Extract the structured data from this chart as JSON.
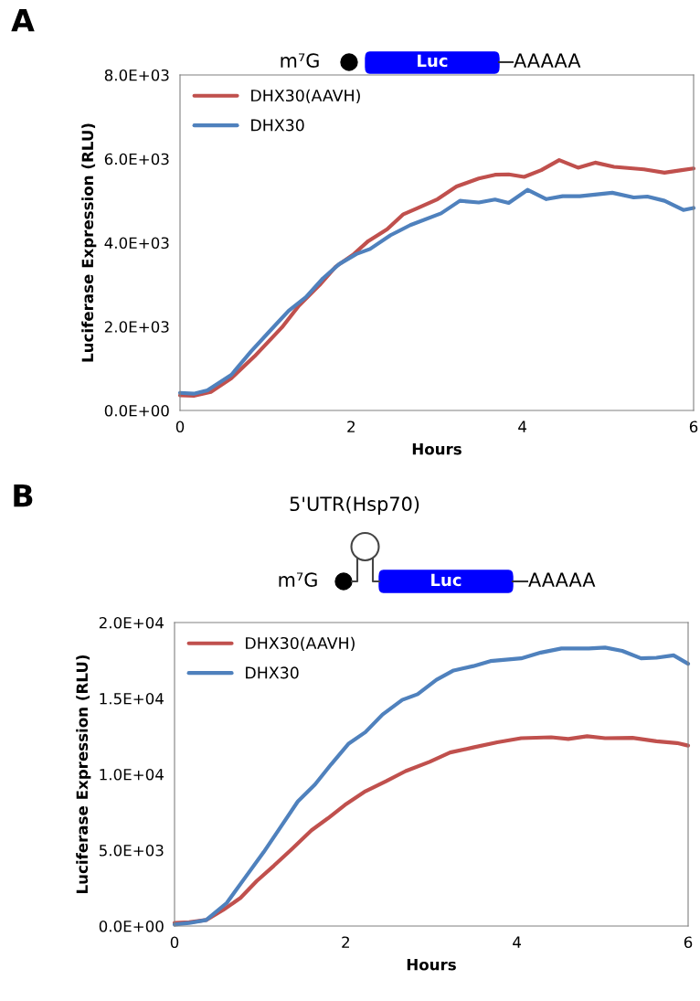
{
  "chart_data": [
    {
      "type": "line",
      "xlabel": "Hours",
      "ylabel": "Luciferase Expression (RLU)",
      "annotations": [
        "A",
        "m⁷G",
        "Luc",
        "AAAAA"
      ],
      "xlim": [
        0,
        6
      ],
      "xticks": [
        0,
        2,
        4,
        6
      ],
      "ylim": [
        0,
        8000
      ],
      "yticks": [
        {
          "value": 0,
          "label": "0.0E+00"
        },
        {
          "value": 2000,
          "label": "2.0E+03"
        },
        {
          "value": 4000,
          "label": "4.0E+03"
        },
        {
          "value": 6000,
          "label": "6.0E+03"
        },
        {
          "value": 8000,
          "label": "8.0E+03"
        }
      ],
      "grid": false,
      "legend": "top left",
      "marker": "none",
      "line_style": "solid",
      "series": [
        {
          "name": "DHX30(AAVH)",
          "color": "#c0504d",
          "x": [
            0,
            0.16,
            0.36,
            0.6,
            0.87,
            1.19,
            1.39,
            1.63,
            1.82,
            2.02,
            2.2,
            2.42,
            2.61,
            2.77,
            3.01,
            3.23,
            3.49,
            3.68,
            3.84,
            4.02,
            4.22,
            4.43,
            4.65,
            4.85,
            5.07,
            5.42,
            5.66,
            5.86,
            6
          ],
          "values": [
            360,
            350,
            440,
            770,
            1290,
            1980,
            2500,
            2990,
            3430,
            3710,
            4040,
            4320,
            4680,
            4820,
            5040,
            5340,
            5530,
            5620,
            5630,
            5570,
            5730,
            5970,
            5790,
            5910,
            5810,
            5750,
            5670,
            5730,
            5770
          ]
        },
        {
          "name": "DHX30",
          "color": "#4f81bd",
          "x": [
            0,
            0.16,
            0.32,
            0.6,
            0.83,
            1.07,
            1.27,
            1.47,
            1.67,
            1.86,
            2.06,
            2.22,
            2.46,
            2.69,
            3.05,
            3.27,
            3.49,
            3.68,
            3.84,
            4.06,
            4.28,
            4.47,
            4.67,
            5.05,
            5.3,
            5.46,
            5.66,
            5.88,
            6
          ],
          "values": [
            420,
            400,
            480,
            850,
            1410,
            1940,
            2380,
            2700,
            3150,
            3490,
            3730,
            3850,
            4180,
            4420,
            4700,
            5000,
            4960,
            5030,
            4950,
            5260,
            5040,
            5110,
            5110,
            5190,
            5080,
            5100,
            5000,
            4780,
            4830
          ]
        }
      ]
    },
    {
      "type": "line",
      "xlabel": "Hours",
      "ylabel": "Luciferase Expression (RLU)",
      "annotations": [
        "B",
        "5'UTR(Hsp70)",
        "m⁷G",
        "Luc",
        "AAAAA"
      ],
      "xlim": [
        0,
        6
      ],
      "xticks": [
        0,
        2,
        4,
        6
      ],
      "ylim": [
        0,
        20000
      ],
      "yticks": [
        {
          "value": 0,
          "label": "0.0E+00"
        },
        {
          "value": 5000,
          "label": "5.0E+03"
        },
        {
          "value": 10000,
          "label": "1.0E+04"
        },
        {
          "value": 15000,
          "label": "1.5E+04"
        },
        {
          "value": 20000,
          "label": "2.0E+04"
        }
      ],
      "grid": false,
      "legend": "top left",
      "marker": "none",
      "line_style": "solid",
      "series": [
        {
          "name": "DHX30(AAVH)",
          "color": "#c0504d",
          "x": [
            0,
            0.17,
            0.37,
            0.57,
            0.77,
            0.96,
            1.16,
            1.36,
            1.6,
            1.79,
            1.99,
            2.23,
            2.47,
            2.7,
            2.98,
            3.22,
            3.49,
            3.77,
            4.05,
            4.4,
            4.6,
            4.82,
            5.03,
            5.35,
            5.63,
            5.87,
            6
          ],
          "values": [
            200,
            250,
            400,
            1070,
            1850,
            2970,
            3970,
            5020,
            6310,
            7090,
            7980,
            8880,
            9540,
            10210,
            10820,
            11440,
            11770,
            12110,
            12380,
            12440,
            12330,
            12510,
            12380,
            12400,
            12180,
            12060,
            11890
          ]
        },
        {
          "name": "DHX30",
          "color": "#4f81bd",
          "x": [
            0,
            0.17,
            0.37,
            0.61,
            0.81,
            1.04,
            1.24,
            1.44,
            1.64,
            1.83,
            2.03,
            2.23,
            2.43,
            2.66,
            2.84,
            3.06,
            3.26,
            3.49,
            3.69,
            4.05,
            4.28,
            4.52,
            4.84,
            5.03,
            5.23,
            5.45,
            5.63,
            5.83,
            6
          ],
          "values": [
            100,
            200,
            400,
            1520,
            3080,
            4860,
            6530,
            8210,
            9320,
            10660,
            12000,
            12780,
            13940,
            14900,
            15280,
            16230,
            16840,
            17130,
            17460,
            17640,
            18020,
            18290,
            18290,
            18350,
            18130,
            17640,
            17680,
            17840,
            17280
          ]
        }
      ]
    }
  ]
}
